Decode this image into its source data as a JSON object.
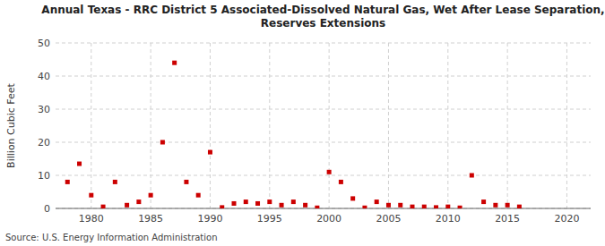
{
  "chart_data": {
    "type": "scatter",
    "title": "Annual Texas - RRC District 5 Associated-Dissolved Natural Gas, Wet After Lease Separation,\nReserves Extensions",
    "ylabel": "Billion Cubic Feet",
    "source": "Source: U.S. Energy Information Administration",
    "color": "#cc0000",
    "marker": "square",
    "grid": true,
    "xlim": [
      1977,
      2022
    ],
    "ylim": [
      0,
      50
    ],
    "xticks": [
      1980,
      1985,
      1990,
      1995,
      2000,
      2005,
      2010,
      2015,
      2020
    ],
    "yticks": [
      0,
      10,
      20,
      30,
      40,
      50
    ],
    "x": [
      1978,
      1979,
      1980,
      1981,
      1982,
      1983,
      1984,
      1985,
      1986,
      1987,
      1988,
      1989,
      1990,
      1991,
      1992,
      1993,
      1994,
      1995,
      1996,
      1997,
      1998,
      1999,
      2000,
      2001,
      2002,
      2003,
      2004,
      2005,
      2006,
      2007,
      2008,
      2009,
      2010,
      2011,
      2012,
      2013,
      2014,
      2015,
      2016
    ],
    "values": [
      8.0,
      13.5,
      4.0,
      0.5,
      8.0,
      1.0,
      2.0,
      4.0,
      20.0,
      44.0,
      8.0,
      4.0,
      17.0,
      0.3,
      1.5,
      2.0,
      1.5,
      2.0,
      1.0,
      2.0,
      1.0,
      0.2,
      11.0,
      8.0,
      3.0,
      0.2,
      2.0,
      1.0,
      1.0,
      0.5,
      0.5,
      0.3,
      0.5,
      0.2,
      10.0,
      2.0,
      1.0,
      1.0,
      0.5
    ]
  }
}
